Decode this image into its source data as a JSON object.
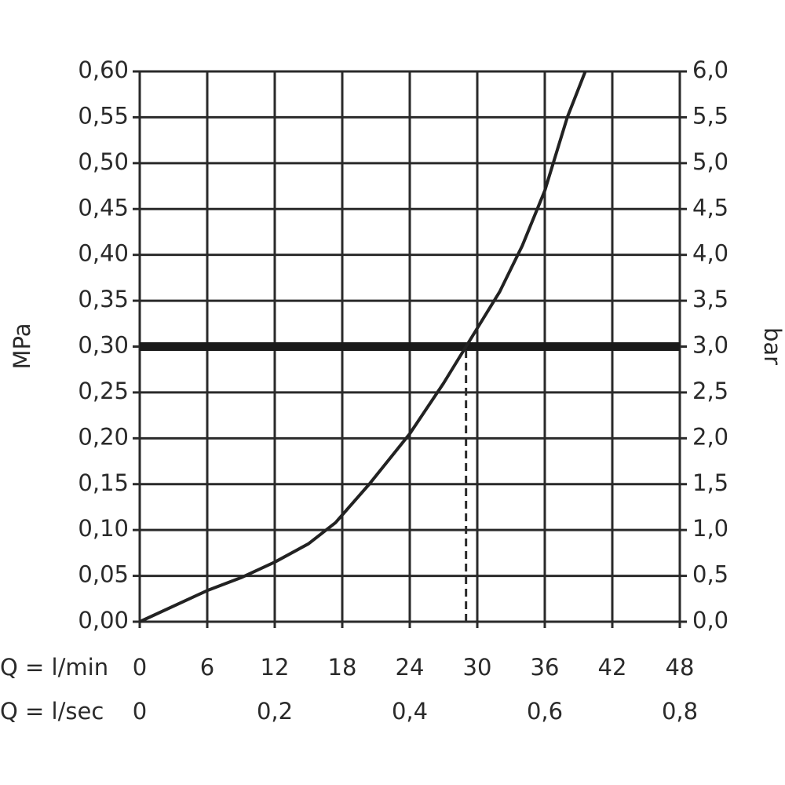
{
  "chart_data": {
    "type": "line",
    "ylabel": "MPa",
    "y2label": "bar",
    "xlabel": "Q = l/min",
    "x2label": "Q = l/sec",
    "xlim": [
      0,
      48
    ],
    "xticks": [
      0,
      6,
      12,
      18,
      24,
      30,
      36,
      42,
      48
    ],
    "x2lim": [
      0,
      0.8
    ],
    "x2ticks": [
      0,
      {
        "value": 0.2,
        "label": "0,2"
      },
      {
        "value": 0.4,
        "label": "0,4"
      },
      {
        "value": 0.6,
        "label": "0,6"
      },
      {
        "value": 0.8,
        "label": "0,8"
      }
    ],
    "ylim": [
      0,
      0.6
    ],
    "yticks": [
      {
        "value": 0,
        "label": "0,00"
      },
      {
        "value": 0.05,
        "label": "0,05"
      },
      {
        "value": 0.1,
        "label": "0,10"
      },
      {
        "value": 0.15,
        "label": "0,15"
      },
      {
        "value": 0.2,
        "label": "0,20"
      },
      {
        "value": 0.25,
        "label": "0,25"
      },
      {
        "value": 0.3,
        "label": "0,30"
      },
      {
        "value": 0.35,
        "label": "0,35"
      },
      {
        "value": 0.4,
        "label": "0,40"
      },
      {
        "value": 0.45,
        "label": "0,45"
      },
      {
        "value": 0.5,
        "label": "0,50"
      },
      {
        "value": 0.55,
        "label": "0,55"
      },
      {
        "value": 0.6,
        "label": "0,60"
      }
    ],
    "y2lim": [
      0,
      6
    ],
    "y2ticks": [
      {
        "value": 0,
        "label": "0,0"
      },
      {
        "value": 0.5,
        "label": "0,5"
      },
      {
        "value": 1,
        "label": "1,0"
      },
      {
        "value": 1.5,
        "label": "1,5"
      },
      {
        "value": 2,
        "label": "2,0"
      },
      {
        "value": 2.5,
        "label": "2,5"
      },
      {
        "value": 3,
        "label": "3,0"
      },
      {
        "value": 3.5,
        "label": "3,5"
      },
      {
        "value": 4,
        "label": "4,0"
      },
      {
        "value": 4.5,
        "label": "4,5"
      },
      {
        "value": 5,
        "label": "5,0"
      },
      {
        "value": 5.5,
        "label": "5,5"
      },
      {
        "value": 6,
        "label": "6,0"
      }
    ],
    "grid": true,
    "hline": 0.3,
    "vline": 29,
    "series": [
      {
        "color": "#222222",
        "x": [
          0,
          6,
          9,
          12,
          15,
          17.4,
          20.4,
          24,
          27,
          29,
          32,
          34,
          36,
          38,
          39.6
        ],
        "values": [
          0,
          0.034,
          0.048,
          0.065,
          0.085,
          0.108,
          0.15,
          0.205,
          0.26,
          0.3,
          0.36,
          0.41,
          0.47,
          0.55,
          0.6
        ]
      }
    ]
  }
}
